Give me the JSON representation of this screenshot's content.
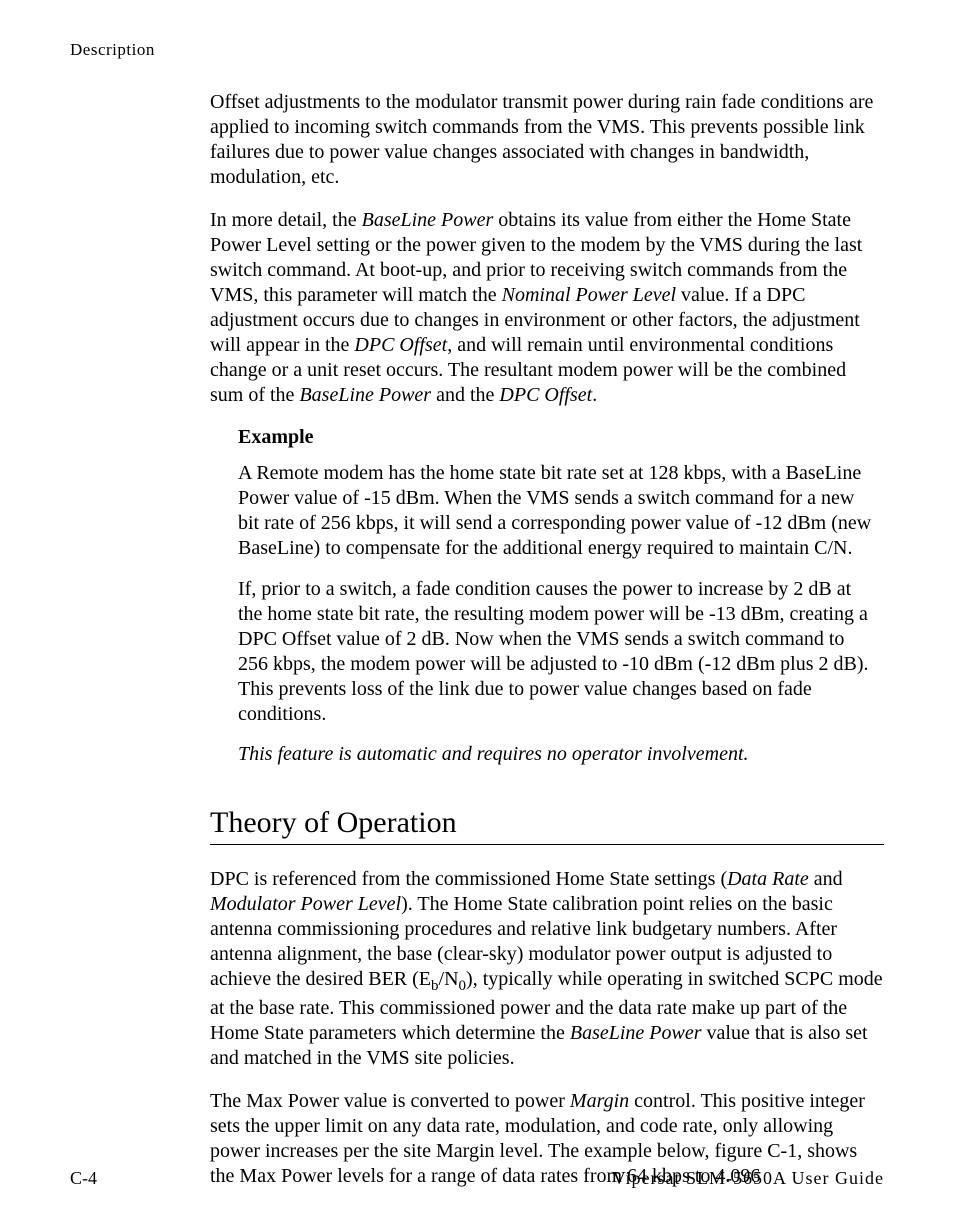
{
  "running_head": "Description",
  "para1": "Offset adjustments to the modulator transmit power during rain fade conditions are applied to incoming switch commands from the VMS. This prevents possible link failures due to power value changes associated with changes in bandwidth, modulation, etc.",
  "para2_pre": "In more detail, the ",
  "para2_i1": "BaseLine Power",
  "para2_mid1": " obtains its value from either the Home State Power Level setting or the power given to the modem by the VMS during the last switch command. At boot-up, and prior to receiving switch commands from the VMS, this parameter will match the ",
  "para2_i2": "Nominal Power Level",
  "para2_mid2": " value. If a DPC adjustment occurs due to changes in environment or other factors, the adjustment will appear in the ",
  "para2_i3": "DPC Offset",
  "para2_mid3": ", and will remain until environmental conditions change or a unit reset occurs.  The resultant modem power will be the combined sum of the ",
  "para2_i4": "BaseLine Power",
  "para2_mid4": " and the ",
  "para2_i5": "DPC Offset",
  "para2_end": ".",
  "example_label": "Example",
  "example_p1": "A Remote modem has the home state bit rate set at 128 kbps, with a BaseLine Power value of -15 dBm. When the VMS sends a switch command for a new bit rate of 256 kbps, it will send a corresponding power value of -12 dBm (new BaseLine) to compensate for the additional energy required to maintain C/N.",
  "example_p2": "If, prior to a switch, a fade condition causes the power to increase by 2 dB at the home state bit rate, the resulting modem power will be -13 dBm, creating a DPC Offset value of 2 dB. Now when the VMS sends a switch command to 256 kbps, the modem power will be adjusted to -10 dBm (-12 dBm plus 2 dB). This prevents loss of the link due to power value changes based on fade conditions.",
  "example_italic": "This feature is automatic and requires no operator involvement.",
  "section_title": "Theory of Operation",
  "theory_p1_pre": "DPC is referenced from the commissioned Home State settings (",
  "theory_p1_i1": "Data Rate",
  "theory_p1_mid1": " and ",
  "theory_p1_i2": "Modulator Power Level",
  "theory_p1_mid2": "). The Home State calibration point relies on the basic antenna commissioning procedures and relative link budgetary numbers. After antenna alignment, the base (clear-sky) modulator power output is adjusted to achieve the desired BER (E",
  "theory_p1_sub1": "b",
  "theory_p1_mid3": "/N",
  "theory_p1_sub2": "0",
  "theory_p1_mid4": "), typically while operating in switched SCPC mode at the base rate. This commissioned power and the data rate make up part of the Home State parameters which determine the ",
  "theory_p1_i3": "BaseLine Power",
  "theory_p1_end": " value that is also set and matched in the VMS site policies.",
  "theory_p2_pre": "The Max Power value is converted to power ",
  "theory_p2_i1": "Margin",
  "theory_p2_end": " control. This positive integer sets the upper limit on any data rate, modulation, and code rate, only allowing power increases per the site Margin level. The example below, figure C-1, shows the Max Power levels for a range of data rates from 64 kbps to 4.096",
  "footer_left": "C-4",
  "footer_right": "Vipersat SLM-5650A User Guide"
}
